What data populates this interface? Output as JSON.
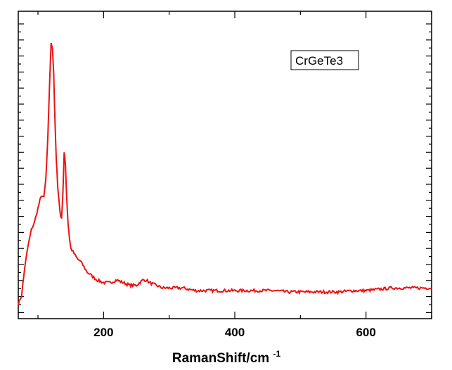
{
  "chart_data": {
    "type": "line",
    "title": "",
    "xlabel": "RamanShift/cm",
    "xlabel_superscript": "-1",
    "ylabel": "",
    "xlim": [
      70,
      700
    ],
    "ylim": [
      0,
      100
    ],
    "x_ticks": [
      200,
      400,
      600
    ],
    "y_tick_labels_shown": false,
    "grid": false,
    "legend": {
      "text": "CrGeTe3",
      "placement": "top-right"
    },
    "colors": {
      "line": "#ee1111",
      "axes": "#000000",
      "background": "#ffffff"
    },
    "series": [
      {
        "name": "CrGeTe3",
        "x": [
          70,
          75,
          80,
          85,
          90,
          95,
          100,
          103,
          106,
          109,
          112,
          115,
          118,
          120,
          122,
          124,
          126,
          128,
          130,
          132,
          134,
          136,
          138,
          140,
          142,
          144,
          146,
          148,
          150,
          155,
          160,
          165,
          170,
          175,
          180,
          185,
          190,
          200,
          210,
          220,
          230,
          240,
          250,
          260,
          265,
          270,
          280,
          290,
          300,
          320,
          340,
          360,
          380,
          400,
          420,
          440,
          460,
          480,
          500,
          520,
          540,
          560,
          580,
          600,
          620,
          640,
          660,
          680,
          700
        ],
        "y": [
          0,
          3,
          14,
          22,
          28,
          31,
          36,
          39,
          41,
          40,
          47,
          62,
          85,
          98,
          97,
          87,
          68,
          54,
          45,
          39,
          34,
          32,
          42,
          57,
          52,
          39,
          30,
          25,
          21,
          19,
          17,
          16,
          14,
          12,
          11,
          10,
          9,
          8,
          8,
          9,
          8,
          7,
          7,
          9,
          9,
          8,
          7,
          6,
          6,
          6,
          5,
          5,
          5,
          5,
          5,
          5,
          5,
          4.5,
          4.5,
          4.5,
          4.5,
          4.5,
          5,
          5,
          5.5,
          6,
          6,
          6,
          6
        ]
      }
    ]
  }
}
